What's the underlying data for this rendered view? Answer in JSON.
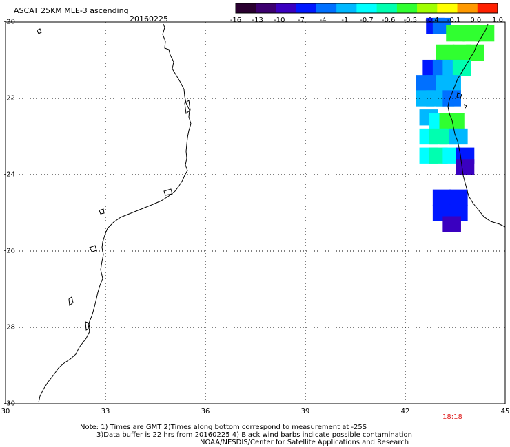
{
  "header": {
    "title": "ASCAT 25KM MLE-3 ascending",
    "date": "20160225"
  },
  "colorbar": {
    "labels": [
      "-16",
      "-13",
      "-10",
      "-7",
      "-4",
      "-1",
      "-0.7",
      "-0.6",
      "-0.5",
      "-0.4",
      "-0.1",
      "0.0",
      "1.0"
    ],
    "colors": [
      "#2a0030",
      "#3c0070",
      "#3a00c0",
      "#0018ff",
      "#0070ff",
      "#00b8ff",
      "#00ffff",
      "#00ffb0",
      "#30ff30",
      "#a0ff00",
      "#ffff00",
      "#ff9900",
      "#ff2000"
    ]
  },
  "axes": {
    "lat_labels": [
      "-20",
      "-22",
      "-24",
      "-26",
      "-28",
      "-30"
    ],
    "lat_values": [
      -20,
      -22,
      -24,
      -26,
      -28,
      -30
    ],
    "lon_labels": [
      "30",
      "33",
      "36",
      "39",
      "42",
      "45"
    ],
    "lon_values": [
      30,
      33,
      36,
      39,
      42,
      45
    ],
    "lat_range": [
      -30,
      -20
    ],
    "lon_range": [
      30,
      45
    ],
    "grid": true
  },
  "pass_time": "18:18",
  "notes": {
    "line1": "Note: 1) Times are GMT 2)Times along bottom correspond to measurement at -25S",
    "line2": "3)Data buffer is 22 hrs from 20160225 4) Black wind barbs indicate possible contamination",
    "line3": "NOAA/NESDIS/Center for Satellite Applications and Research"
  },
  "swath_data": [
    {
      "lon": 42.9,
      "lat": -20.1,
      "value": -7
    },
    {
      "lon": 43.1,
      "lat": -20.1,
      "value": -4
    },
    {
      "lon": 43.5,
      "lat": -20.3,
      "value": -0.5
    },
    {
      "lon": 44.0,
      "lat": -20.3,
      "value": -0.5
    },
    {
      "lon": 44.4,
      "lat": -20.3,
      "value": -0.5
    },
    {
      "lon": 43.2,
      "lat": -20.8,
      "value": -0.5
    },
    {
      "lon": 43.7,
      "lat": -20.8,
      "value": -0.5
    },
    {
      "lon": 44.1,
      "lat": -20.8,
      "value": -0.5
    },
    {
      "lon": 42.8,
      "lat": -21.2,
      "value": -7
    },
    {
      "lon": 43.1,
      "lat": -21.2,
      "value": -4
    },
    {
      "lon": 43.4,
      "lat": -21.2,
      "value": -1
    },
    {
      "lon": 43.7,
      "lat": -21.2,
      "value": -0.6
    },
    {
      "lon": 42.6,
      "lat": -21.6,
      "value": -4
    },
    {
      "lon": 42.9,
      "lat": -21.6,
      "value": -4
    },
    {
      "lon": 43.2,
      "lat": -21.6,
      "value": -1
    },
    {
      "lon": 43.4,
      "lat": -21.6,
      "value": -1
    },
    {
      "lon": 42.6,
      "lat": -22.0,
      "value": -1
    },
    {
      "lon": 42.9,
      "lat": -22.0,
      "value": -1
    },
    {
      "lon": 43.2,
      "lat": -22.0,
      "value": -1
    },
    {
      "lon": 43.4,
      "lat": -22.0,
      "value": -4
    },
    {
      "lon": 42.7,
      "lat": -22.5,
      "value": -1
    },
    {
      "lon": 43.0,
      "lat": -22.6,
      "value": -0.7
    },
    {
      "lon": 43.3,
      "lat": -22.6,
      "value": -0.5
    },
    {
      "lon": 43.5,
      "lat": -22.6,
      "value": -0.5
    },
    {
      "lon": 42.7,
      "lat": -23.0,
      "value": -0.7
    },
    {
      "lon": 43.0,
      "lat": -23.0,
      "value": -0.6
    },
    {
      "lon": 43.3,
      "lat": -23.0,
      "value": -0.6
    },
    {
      "lon": 43.6,
      "lat": -23.0,
      "value": -1
    },
    {
      "lon": 42.7,
      "lat": -23.5,
      "value": -0.7
    },
    {
      "lon": 43.0,
      "lat": -23.5,
      "value": -0.6
    },
    {
      "lon": 43.4,
      "lat": -23.5,
      "value": -0.7
    },
    {
      "lon": 43.8,
      "lat": -23.5,
      "value": -7
    },
    {
      "lon": 43.8,
      "lat": -23.8,
      "value": -10
    },
    {
      "lon": 43.1,
      "lat": -24.6,
      "value": -7
    },
    {
      "lon": 43.6,
      "lat": -24.6,
      "value": -7
    },
    {
      "lon": 43.1,
      "lat": -25.0,
      "value": -7
    },
    {
      "lon": 43.6,
      "lat": -25.0,
      "value": -7
    },
    {
      "lon": 43.4,
      "lat": -25.3,
      "value": -10
    }
  ]
}
